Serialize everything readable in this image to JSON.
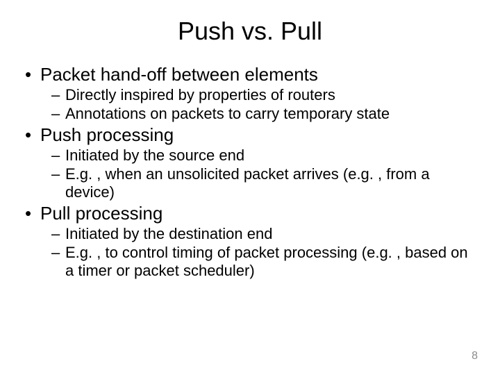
{
  "slide": {
    "title": "Push vs. Pull",
    "title_fontsize": 36,
    "bullet_lvl1_fontsize": 26,
    "bullet_lvl2_fontsize": 22,
    "background_color": "#ffffff",
    "text_color": "#000000",
    "pagenum_color": "#8c8c8c",
    "bullets": [
      {
        "text": "Packet hand-off between elements",
        "sub": [
          {
            "text": "Directly inspired by properties of routers"
          },
          {
            "text": "Annotations on packets to carry temporary state"
          }
        ]
      },
      {
        "text": "Push processing",
        "sub": [
          {
            "text": "Initiated by the source end"
          },
          {
            "text": "E.g. , when an unsolicited packet arrives (e.g. , from a device)"
          }
        ]
      },
      {
        "text": "Pull processing",
        "sub": [
          {
            "text": "Initiated by the destination end"
          },
          {
            "text": "E.g. , to control timing of packet processing (e.g. , based on a timer or packet scheduler)"
          }
        ]
      }
    ],
    "page_number": "8"
  }
}
